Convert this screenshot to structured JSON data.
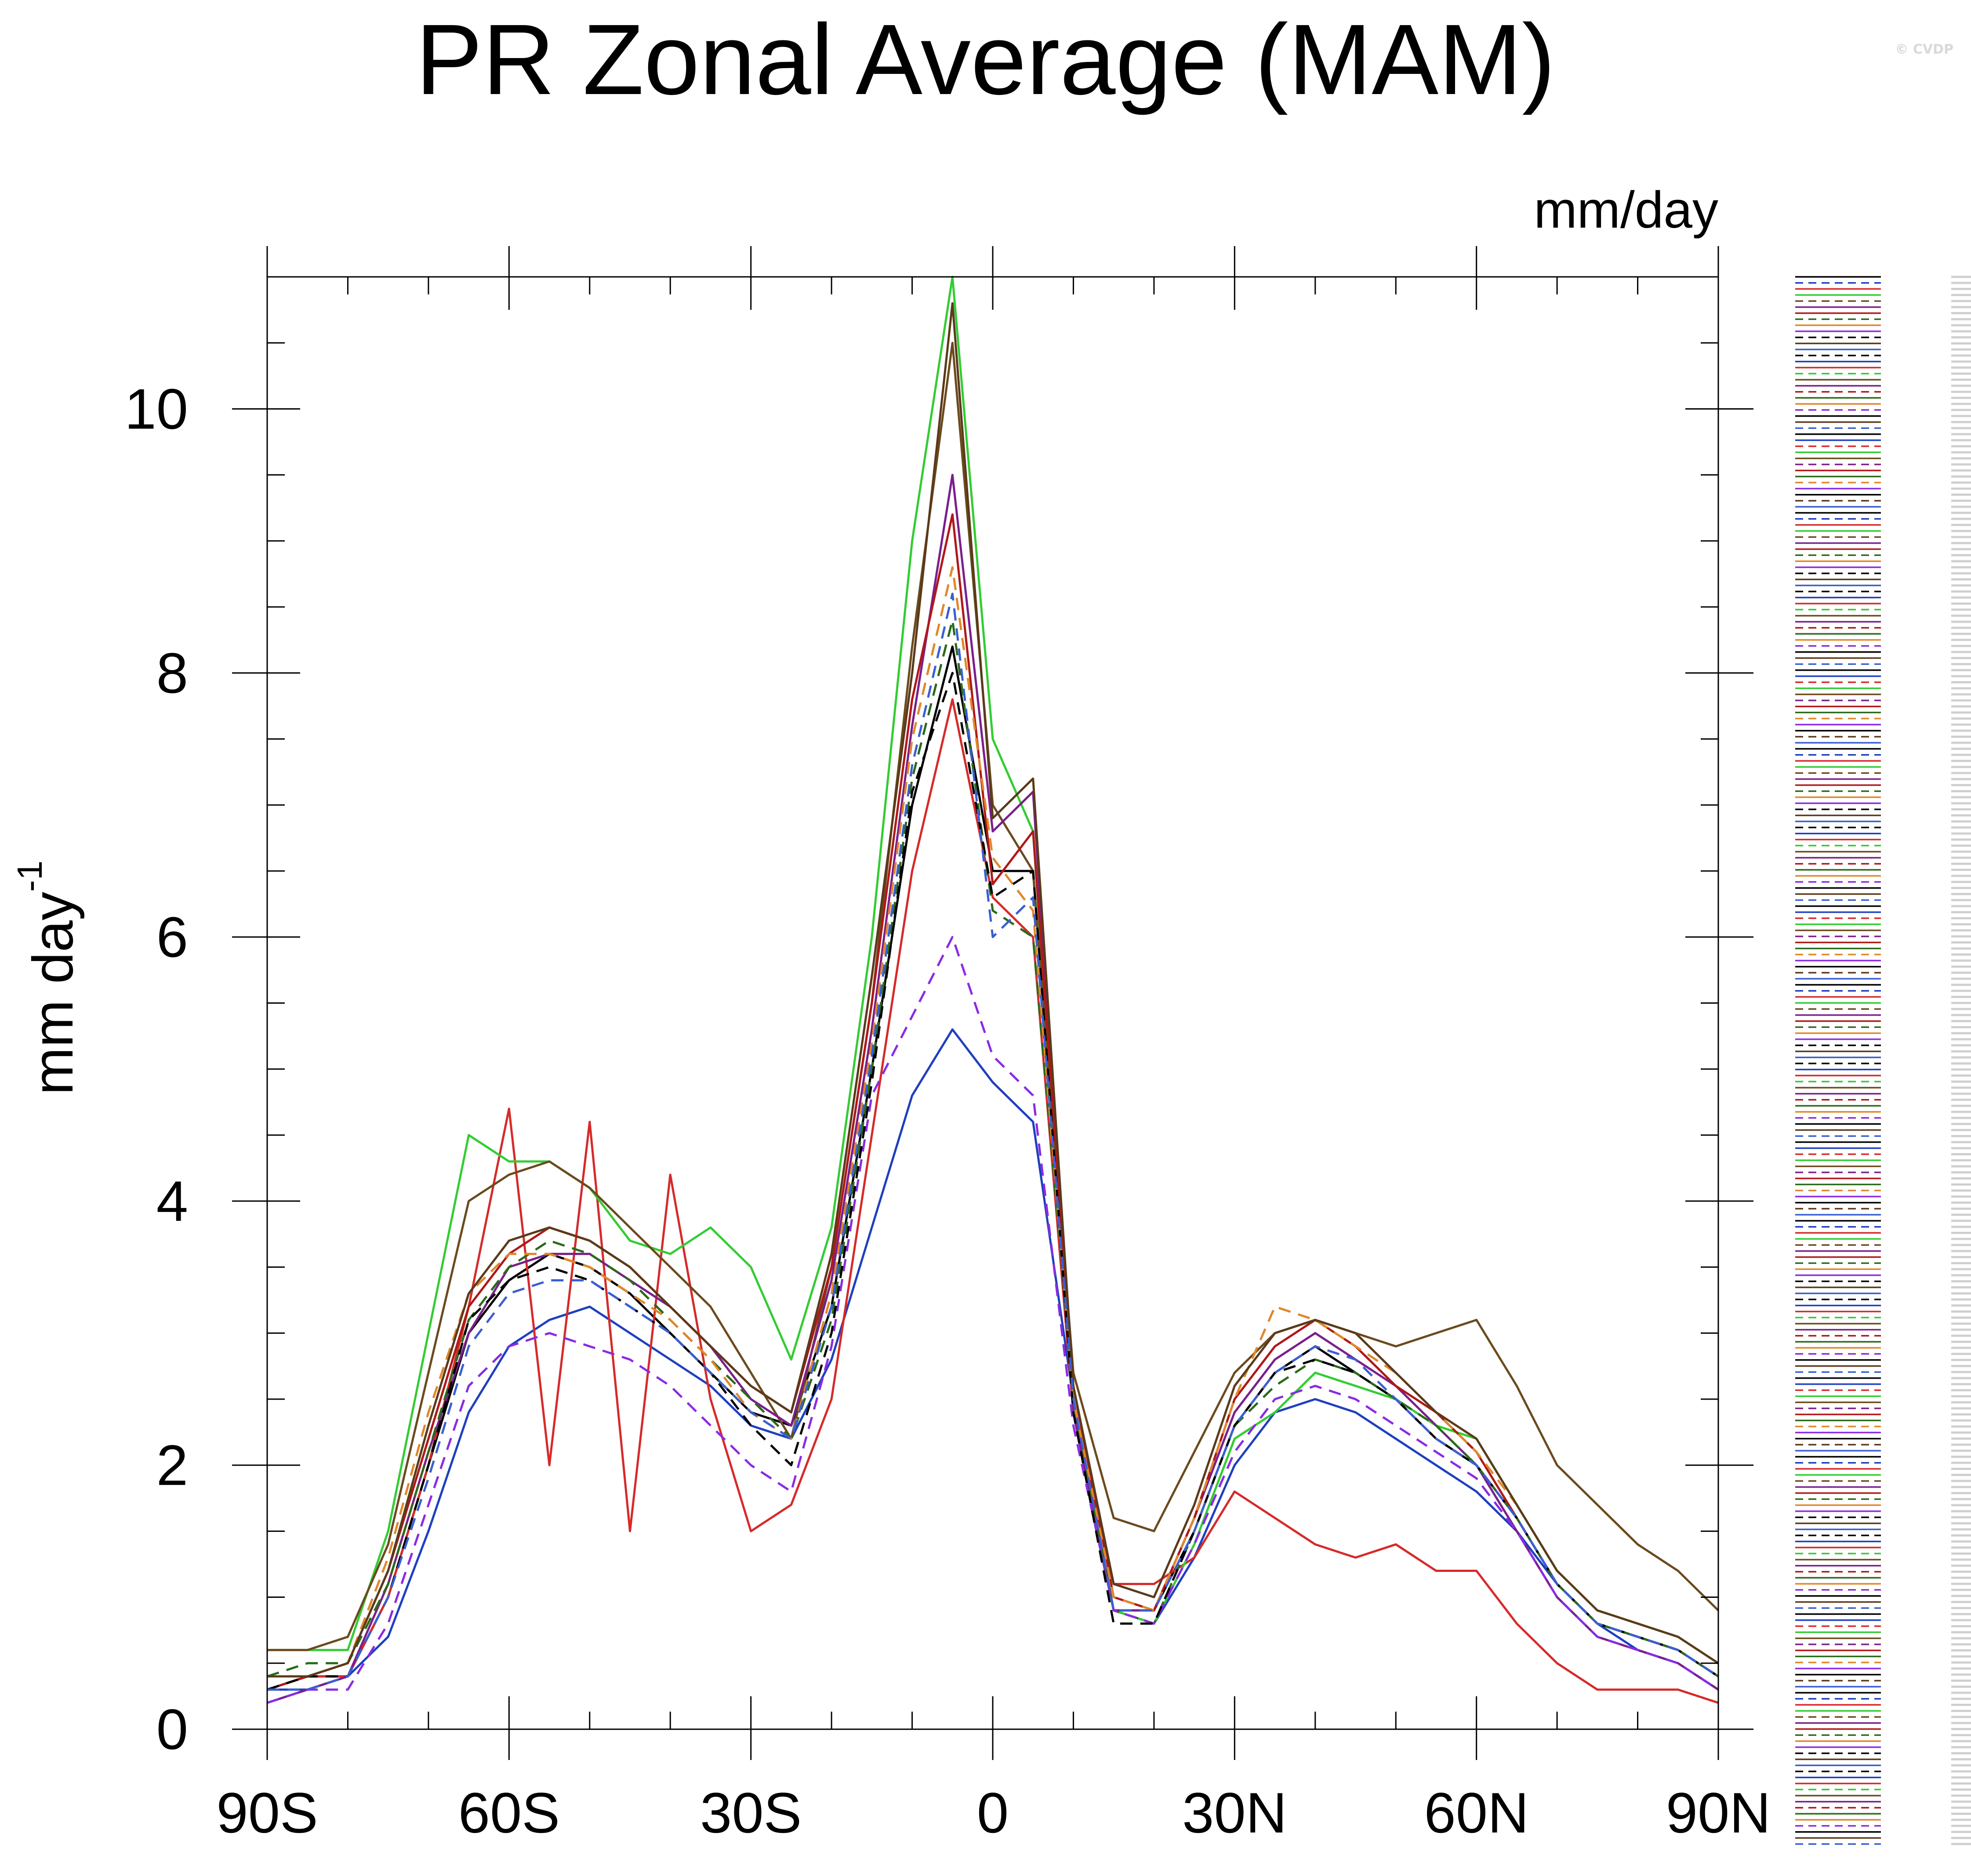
{
  "title": "PR Zonal Average (MAM)",
  "copyright": "© CVDP",
  "units_label": "mm/day",
  "chart_data": {
    "type": "line",
    "title": "PR Zonal Average (MAM)",
    "ylabel": "mm day",
    "ylabel_exponent": "-1",
    "units": "mm/day",
    "xlim": [
      -90,
      90
    ],
    "ylim": [
      0,
      11
    ],
    "xticks": [
      {
        "value": -90,
        "label": "90S"
      },
      {
        "value": -60,
        "label": "60S"
      },
      {
        "value": -30,
        "label": "30S"
      },
      {
        "value": 0,
        "label": "0"
      },
      {
        "value": 30,
        "label": "30N"
      },
      {
        "value": 60,
        "label": "60N"
      },
      {
        "value": 90,
        "label": "90N"
      }
    ],
    "yticks": [
      {
        "value": 0,
        "label": "0"
      },
      {
        "value": 2,
        "label": "2"
      },
      {
        "value": 4,
        "label": "4"
      },
      {
        "value": 6,
        "label": "6"
      },
      {
        "value": 8,
        "label": "8"
      },
      {
        "value": 10,
        "label": "10"
      }
    ],
    "x": [
      -90,
      -85,
      -80,
      -75,
      -70,
      -65,
      -60,
      -55,
      -50,
      -45,
      -40,
      -35,
      -30,
      -25,
      -20,
      -15,
      -10,
      -5,
      0,
      5,
      10,
      15,
      20,
      25,
      30,
      35,
      40,
      45,
      50,
      55,
      60,
      65,
      70,
      75,
      80,
      85,
      90
    ],
    "series": [
      {
        "color": "#000000",
        "dash": false,
        "values": [
          0.3,
          0.4,
          0.4,
          1.0,
          2.0,
          3.0,
          3.4,
          3.6,
          3.5,
          3.3,
          3.0,
          2.7,
          2.4,
          2.3,
          3.2,
          5.0,
          7.0,
          8.2,
          6.5,
          6.5,
          2.5,
          0.9,
          0.9,
          1.5,
          2.3,
          2.7,
          2.9,
          2.7,
          2.5,
          2.2,
          2.0,
          1.6,
          1.1,
          0.8,
          0.7,
          0.6,
          0.4
        ]
      },
      {
        "color": "#1f3fbf",
        "dash": false,
        "values": [
          0.3,
          0.3,
          0.4,
          0.7,
          1.5,
          2.4,
          2.9,
          3.1,
          3.2,
          3.0,
          2.8,
          2.6,
          2.3,
          2.2,
          2.8,
          3.8,
          4.8,
          5.3,
          4.9,
          4.6,
          2.5,
          0.9,
          0.8,
          1.3,
          2.0,
          2.4,
          2.5,
          2.4,
          2.2,
          2.0,
          1.8,
          1.5,
          1.1,
          0.8,
          0.6,
          0.5,
          0.3
        ]
      },
      {
        "color": "#d62a2a",
        "dash": false,
        "values": [
          0.3,
          0.4,
          0.4,
          1.0,
          2.0,
          3.2,
          4.7,
          2.0,
          4.6,
          1.5,
          4.2,
          2.5,
          1.5,
          1.7,
          2.5,
          4.5,
          6.5,
          7.8,
          6.3,
          6.0,
          2.4,
          1.1,
          1.1,
          1.3,
          1.8,
          1.6,
          1.4,
          1.3,
          1.4,
          1.2,
          1.2,
          0.8,
          0.5,
          0.3,
          0.3,
          0.3,
          0.2
        ]
      },
      {
        "color": "#33cc33",
        "dash": false,
        "values": [
          0.6,
          0.6,
          0.6,
          1.5,
          3.0,
          4.5,
          4.3,
          4.3,
          4.1,
          3.7,
          3.6,
          3.8,
          3.5,
          2.8,
          3.8,
          6.0,
          9.0,
          11.0,
          7.5,
          6.8,
          2.4,
          0.9,
          0.8,
          1.4,
          2.2,
          2.4,
          2.7,
          2.6,
          2.5,
          2.3,
          2.2,
          1.7,
          1.2,
          0.9,
          0.8,
          0.7,
          0.5
        ]
      },
      {
        "color": "#6b4a1e",
        "dash": false,
        "values": [
          0.6,
          0.6,
          0.7,
          1.4,
          2.7,
          4.0,
          4.2,
          4.3,
          4.1,
          3.8,
          3.5,
          3.2,
          2.7,
          2.2,
          3.5,
          5.5,
          8.2,
          10.5,
          7.0,
          6.5,
          2.7,
          1.6,
          1.5,
          2.1,
          2.7,
          3.0,
          3.1,
          3.0,
          2.9,
          3.0,
          3.1,
          2.6,
          2.0,
          1.7,
          1.4,
          1.2,
          0.9
        ]
      },
      {
        "color": "#7a1f8c",
        "dash": false,
        "values": [
          0.2,
          0.3,
          0.4,
          1.1,
          2.1,
          3.0,
          3.5,
          3.6,
          3.6,
          3.4,
          3.2,
          2.9,
          2.5,
          2.3,
          3.4,
          5.3,
          7.6,
          9.5,
          6.8,
          7.1,
          2.4,
          0.9,
          0.9,
          1.6,
          2.4,
          2.8,
          3.0,
          2.8,
          2.6,
          2.3,
          2.0,
          1.5,
          1.0,
          0.7,
          0.6,
          0.5,
          0.3
        ]
      },
      {
        "color": "#b01818",
        "dash": false,
        "values": [
          0.3,
          0.4,
          0.5,
          1.2,
          2.2,
          3.2,
          3.6,
          3.8,
          3.7,
          3.5,
          3.2,
          2.9,
          2.6,
          2.4,
          3.5,
          5.5,
          7.8,
          9.2,
          6.4,
          6.8,
          2.6,
          1.0,
          0.9,
          1.6,
          2.5,
          2.9,
          3.1,
          2.9,
          2.6,
          2.4,
          2.1,
          1.6,
          1.1,
          0.8,
          0.7,
          0.6,
          0.4
        ]
      },
      {
        "color": "#2a6a1a",
        "dash": true,
        "values": [
          0.4,
          0.5,
          0.5,
          1.1,
          2.1,
          3.1,
          3.5,
          3.7,
          3.6,
          3.4,
          3.1,
          2.8,
          2.5,
          2.2,
          3.1,
          5.0,
          7.2,
          8.4,
          6.2,
          6.0,
          2.5,
          0.9,
          0.8,
          1.5,
          2.3,
          2.6,
          2.8,
          2.7,
          2.5,
          2.3,
          2.0,
          1.6,
          1.1,
          0.8,
          0.7,
          0.6,
          0.4
        ]
      },
      {
        "color": "#e0872a",
        "dash": true,
        "values": [
          0.3,
          0.4,
          0.5,
          1.3,
          2.4,
          3.3,
          3.6,
          3.6,
          3.5,
          3.3,
          3.1,
          2.8,
          2.4,
          2.2,
          3.3,
          5.2,
          7.5,
          8.8,
          6.6,
          6.2,
          2.5,
          1.0,
          0.9,
          1.6,
          2.5,
          3.2,
          3.1,
          2.9,
          2.7,
          2.4,
          2.1,
          1.7,
          1.2,
          0.9,
          0.8,
          0.7,
          0.5
        ]
      },
      {
        "color": "#8a2be2",
        "dash": true,
        "values": [
          0.2,
          0.3,
          0.3,
          0.8,
          1.7,
          2.6,
          2.9,
          3.0,
          2.9,
          2.8,
          2.6,
          2.3,
          2.0,
          1.8,
          2.9,
          4.8,
          5.4,
          6.0,
          5.1,
          4.8,
          2.3,
          0.9,
          0.8,
          1.4,
          2.1,
          2.5,
          2.6,
          2.5,
          2.3,
          2.1,
          1.9,
          1.5,
          1.0,
          0.7,
          0.6,
          0.5,
          0.3
        ]
      },
      {
        "color": "#000000",
        "dash": true,
        "values": [
          0.3,
          0.4,
          0.4,
          1.0,
          2.0,
          3.1,
          3.4,
          3.5,
          3.4,
          3.2,
          3.0,
          2.7,
          2.3,
          2.0,
          3.0,
          4.9,
          7.1,
          8.0,
          6.3,
          6.5,
          2.4,
          0.8,
          0.8,
          1.5,
          2.3,
          2.7,
          2.8,
          2.7,
          2.5,
          2.2,
          2.0,
          1.6,
          1.1,
          0.8,
          0.7,
          0.6,
          0.4
        ]
      },
      {
        "color": "#5a3a1a",
        "dash": false,
        "values": [
          0.4,
          0.4,
          0.5,
          1.2,
          2.3,
          3.3,
          3.7,
          3.8,
          3.7,
          3.5,
          3.2,
          2.9,
          2.6,
          2.4,
          3.6,
          5.7,
          8.0,
          10.8,
          6.9,
          7.2,
          2.6,
          1.1,
          1.0,
          1.7,
          2.6,
          3.0,
          3.1,
          3.0,
          2.7,
          2.4,
          2.2,
          1.7,
          1.2,
          0.9,
          0.8,
          0.7,
          0.5
        ]
      },
      {
        "color": "#3a5fd0",
        "dash": true,
        "values": [
          0.3,
          0.3,
          0.4,
          1.0,
          1.9,
          2.9,
          3.3,
          3.4,
          3.4,
          3.2,
          3.0,
          2.7,
          2.4,
          2.2,
          3.2,
          5.1,
          7.3,
          8.6,
          6.0,
          6.3,
          2.5,
          0.9,
          0.9,
          1.5,
          2.3,
          2.7,
          2.9,
          2.8,
          2.5,
          2.2,
          2.0,
          1.6,
          1.1,
          0.8,
          0.7,
          0.6,
          0.4
        ]
      }
    ],
    "zero_lines": [
      {
        "color": "#8a2be2",
        "dash": true,
        "value": 0.0
      }
    ],
    "legend_placement": "right"
  }
}
